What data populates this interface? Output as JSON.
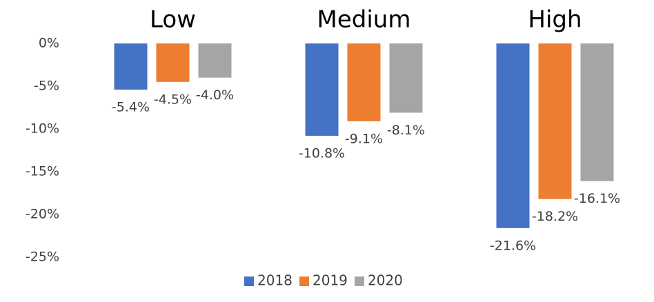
{
  "chart_data": {
    "type": "bar",
    "categories": [
      "Low",
      "Medium",
      "High"
    ],
    "series": [
      {
        "name": "2018",
        "color": "#4472c4",
        "values": [
          -5.4,
          -10.8,
          -21.6
        ],
        "value_labels": [
          "-5.4%",
          "-10.8%",
          "-21.6%"
        ]
      },
      {
        "name": "2019",
        "color": "#ed7d31",
        "values": [
          -4.5,
          -9.1,
          -18.2
        ],
        "value_labels": [
          "-4.5%",
          "-9.1%",
          "-18.2%"
        ]
      },
      {
        "name": "2020",
        "color": "#a5a5a5",
        "values": [
          -4.0,
          -8.1,
          -16.1
        ],
        "value_labels": [
          "-4.0%",
          "-8.1%",
          "-16.1%"
        ]
      }
    ],
    "ylim": [
      -25,
      0
    ],
    "yticks": [
      {
        "value": 0,
        "label": "0%"
      },
      {
        "value": -5,
        "label": "-5%"
      },
      {
        "value": -10,
        "label": "-10%"
      },
      {
        "value": -15,
        "label": "-15%"
      },
      {
        "value": -20,
        "label": "-20%"
      },
      {
        "value": -25,
        "label": "-25%"
      }
    ],
    "grid": false,
    "legend": "bottom"
  }
}
